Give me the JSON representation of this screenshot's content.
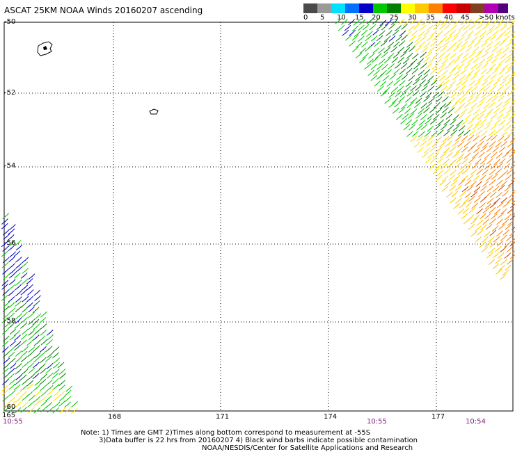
{
  "title": "ASCAT 25KM NOAA Winds 20160207 ascending",
  "legend": {
    "labels": [
      "0",
      "5",
      "10",
      "15",
      "20",
      "25",
      "30",
      "35",
      "40",
      "45",
      ">50 knots"
    ],
    "colors": [
      "#4a4a4a",
      "#9a9a9a",
      "#00e0ff",
      "#0070ff",
      "#0000c8",
      "#00c800",
      "#008000",
      "#ffff00",
      "#ffc800",
      "#ff8000",
      "#ff0000",
      "#c80000",
      "#804020",
      "#b000b0",
      "#500080"
    ]
  },
  "axes": {
    "lon_ticks": [
      "165",
      "168",
      "171",
      "174",
      "177"
    ],
    "lat_ticks": [
      "-50",
      "-52",
      "-54",
      "-56",
      "-58",
      "-60"
    ]
  },
  "times": [
    "10:55",
    "10:55",
    "10:54"
  ],
  "notes": {
    "line1": "Note: 1) Times are GMT 2)Times along bottom correspond to measurement at -55S",
    "line2": "3)Data buffer is 22 hrs from 20160207 4) Black wind barbs indicate possible contamination",
    "line3": "NOAA/NESDIS/Center for Satellite Applications and Research"
  }
}
